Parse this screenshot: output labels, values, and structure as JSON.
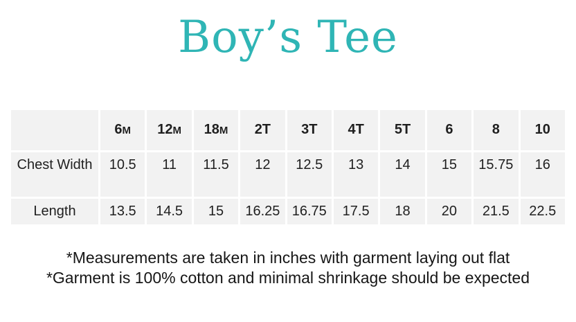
{
  "title": {
    "text": "Boy’s Tee"
  },
  "table": {
    "columns": [
      "6M",
      "12M",
      "18M",
      "2T",
      "3T",
      "4T",
      "5T",
      "6",
      "8",
      "10"
    ],
    "rows": [
      {
        "label": "Chest Width",
        "values": [
          "10.5",
          "11",
          "11.5",
          "12",
          "12.5",
          "13",
          "14",
          "15",
          "15.75",
          "16"
        ]
      },
      {
        "label": "Length",
        "values": [
          "13.5",
          "14.5",
          "15",
          "16.25",
          "16.75",
          "17.5",
          "18",
          "20",
          "21.5",
          "22.5"
        ]
      }
    ]
  },
  "notes": [
    "*Measurements are taken in inches with garment laying out flat",
    "*Garment is 100% cotton and minimal shrinkage should be expected"
  ],
  "colors": {
    "accent": "#2fb5b5",
    "cell_bg": "#f2f2f2",
    "text": "#1f1f1f"
  }
}
